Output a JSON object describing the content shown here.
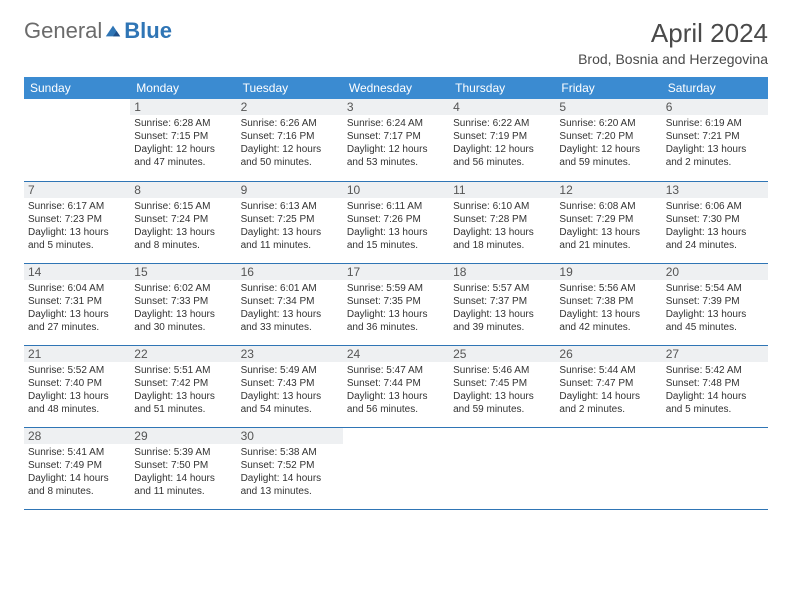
{
  "logo": {
    "part1": "General",
    "part2": "Blue"
  },
  "title": "April 2024",
  "location": "Brod, Bosnia and Herzegovina",
  "colors": {
    "header_bg": "#3b8bd1",
    "header_text": "#ffffff",
    "daynum_bg": "#eef0f2",
    "border": "#2f75b5",
    "text": "#333333"
  },
  "day_headers": [
    "Sunday",
    "Monday",
    "Tuesday",
    "Wednesday",
    "Thursday",
    "Friday",
    "Saturday"
  ],
  "weeks": [
    [
      {
        "n": "",
        "sunrise": "",
        "sunset": "",
        "day": "",
        "empty": true
      },
      {
        "n": "1",
        "sunrise": "Sunrise: 6:28 AM",
        "sunset": "Sunset: 7:15 PM",
        "day": "Daylight: 12 hours and 47 minutes."
      },
      {
        "n": "2",
        "sunrise": "Sunrise: 6:26 AM",
        "sunset": "Sunset: 7:16 PM",
        "day": "Daylight: 12 hours and 50 minutes."
      },
      {
        "n": "3",
        "sunrise": "Sunrise: 6:24 AM",
        "sunset": "Sunset: 7:17 PM",
        "day": "Daylight: 12 hours and 53 minutes."
      },
      {
        "n": "4",
        "sunrise": "Sunrise: 6:22 AM",
        "sunset": "Sunset: 7:19 PM",
        "day": "Daylight: 12 hours and 56 minutes."
      },
      {
        "n": "5",
        "sunrise": "Sunrise: 6:20 AM",
        "sunset": "Sunset: 7:20 PM",
        "day": "Daylight: 12 hours and 59 minutes."
      },
      {
        "n": "6",
        "sunrise": "Sunrise: 6:19 AM",
        "sunset": "Sunset: 7:21 PM",
        "day": "Daylight: 13 hours and 2 minutes."
      }
    ],
    [
      {
        "n": "7",
        "sunrise": "Sunrise: 6:17 AM",
        "sunset": "Sunset: 7:23 PM",
        "day": "Daylight: 13 hours and 5 minutes."
      },
      {
        "n": "8",
        "sunrise": "Sunrise: 6:15 AM",
        "sunset": "Sunset: 7:24 PM",
        "day": "Daylight: 13 hours and 8 minutes."
      },
      {
        "n": "9",
        "sunrise": "Sunrise: 6:13 AM",
        "sunset": "Sunset: 7:25 PM",
        "day": "Daylight: 13 hours and 11 minutes."
      },
      {
        "n": "10",
        "sunrise": "Sunrise: 6:11 AM",
        "sunset": "Sunset: 7:26 PM",
        "day": "Daylight: 13 hours and 15 minutes."
      },
      {
        "n": "11",
        "sunrise": "Sunrise: 6:10 AM",
        "sunset": "Sunset: 7:28 PM",
        "day": "Daylight: 13 hours and 18 minutes."
      },
      {
        "n": "12",
        "sunrise": "Sunrise: 6:08 AM",
        "sunset": "Sunset: 7:29 PM",
        "day": "Daylight: 13 hours and 21 minutes."
      },
      {
        "n": "13",
        "sunrise": "Sunrise: 6:06 AM",
        "sunset": "Sunset: 7:30 PM",
        "day": "Daylight: 13 hours and 24 minutes."
      }
    ],
    [
      {
        "n": "14",
        "sunrise": "Sunrise: 6:04 AM",
        "sunset": "Sunset: 7:31 PM",
        "day": "Daylight: 13 hours and 27 minutes."
      },
      {
        "n": "15",
        "sunrise": "Sunrise: 6:02 AM",
        "sunset": "Sunset: 7:33 PM",
        "day": "Daylight: 13 hours and 30 minutes."
      },
      {
        "n": "16",
        "sunrise": "Sunrise: 6:01 AM",
        "sunset": "Sunset: 7:34 PM",
        "day": "Daylight: 13 hours and 33 minutes."
      },
      {
        "n": "17",
        "sunrise": "Sunrise: 5:59 AM",
        "sunset": "Sunset: 7:35 PM",
        "day": "Daylight: 13 hours and 36 minutes."
      },
      {
        "n": "18",
        "sunrise": "Sunrise: 5:57 AM",
        "sunset": "Sunset: 7:37 PM",
        "day": "Daylight: 13 hours and 39 minutes."
      },
      {
        "n": "19",
        "sunrise": "Sunrise: 5:56 AM",
        "sunset": "Sunset: 7:38 PM",
        "day": "Daylight: 13 hours and 42 minutes."
      },
      {
        "n": "20",
        "sunrise": "Sunrise: 5:54 AM",
        "sunset": "Sunset: 7:39 PM",
        "day": "Daylight: 13 hours and 45 minutes."
      }
    ],
    [
      {
        "n": "21",
        "sunrise": "Sunrise: 5:52 AM",
        "sunset": "Sunset: 7:40 PM",
        "day": "Daylight: 13 hours and 48 minutes."
      },
      {
        "n": "22",
        "sunrise": "Sunrise: 5:51 AM",
        "sunset": "Sunset: 7:42 PM",
        "day": "Daylight: 13 hours and 51 minutes."
      },
      {
        "n": "23",
        "sunrise": "Sunrise: 5:49 AM",
        "sunset": "Sunset: 7:43 PM",
        "day": "Daylight: 13 hours and 54 minutes."
      },
      {
        "n": "24",
        "sunrise": "Sunrise: 5:47 AM",
        "sunset": "Sunset: 7:44 PM",
        "day": "Daylight: 13 hours and 56 minutes."
      },
      {
        "n": "25",
        "sunrise": "Sunrise: 5:46 AM",
        "sunset": "Sunset: 7:45 PM",
        "day": "Daylight: 13 hours and 59 minutes."
      },
      {
        "n": "26",
        "sunrise": "Sunrise: 5:44 AM",
        "sunset": "Sunset: 7:47 PM",
        "day": "Daylight: 14 hours and 2 minutes."
      },
      {
        "n": "27",
        "sunrise": "Sunrise: 5:42 AM",
        "sunset": "Sunset: 7:48 PM",
        "day": "Daylight: 14 hours and 5 minutes."
      }
    ],
    [
      {
        "n": "28",
        "sunrise": "Sunrise: 5:41 AM",
        "sunset": "Sunset: 7:49 PM",
        "day": "Daylight: 14 hours and 8 minutes."
      },
      {
        "n": "29",
        "sunrise": "Sunrise: 5:39 AM",
        "sunset": "Sunset: 7:50 PM",
        "day": "Daylight: 14 hours and 11 minutes."
      },
      {
        "n": "30",
        "sunrise": "Sunrise: 5:38 AM",
        "sunset": "Sunset: 7:52 PM",
        "day": "Daylight: 14 hours and 13 minutes."
      },
      {
        "n": "",
        "sunrise": "",
        "sunset": "",
        "day": "",
        "empty": true
      },
      {
        "n": "",
        "sunrise": "",
        "sunset": "",
        "day": "",
        "empty": true
      },
      {
        "n": "",
        "sunrise": "",
        "sunset": "",
        "day": "",
        "empty": true
      },
      {
        "n": "",
        "sunrise": "",
        "sunset": "",
        "day": "",
        "empty": true
      }
    ]
  ]
}
